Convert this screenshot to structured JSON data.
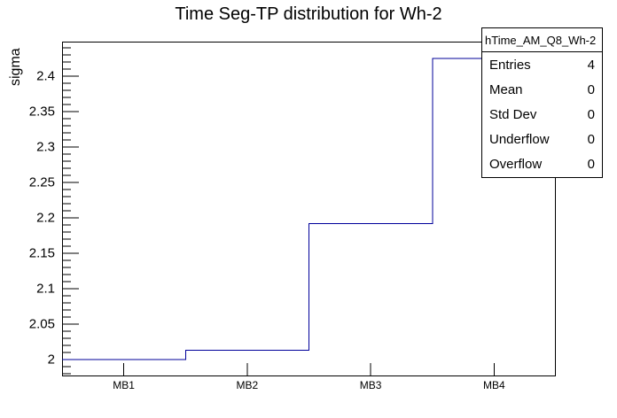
{
  "chart_data": {
    "type": "line",
    "style": "step-histogram",
    "title": "Time Seg-TP distribution for Wh-2",
    "xlabel": "",
    "ylabel": "sigma",
    "categories": [
      "MB1",
      "MB2",
      "MB3",
      "MB4"
    ],
    "values": [
      2.0,
      2.013,
      2.192,
      2.425
    ],
    "ylim": [
      1.976,
      2.449
    ],
    "y_major_ticks": [
      2.0,
      2.05,
      2.1,
      2.15,
      2.2,
      2.25,
      2.3,
      2.35,
      2.4
    ],
    "y_major_labels": [
      "2",
      "2.05",
      "2.1",
      "2.15",
      "2.2",
      "2.25",
      "2.3",
      "2.35",
      "2.4"
    ],
    "y_minor_step": 0.01,
    "grid": false,
    "legend": false,
    "line_color": "#00009a",
    "axis_color": "#000000",
    "background_color": "#ffffff"
  },
  "stats_box": {
    "header": "hTime_AM_Q8_Wh-2",
    "rows": [
      {
        "label": "Entries",
        "value": "4"
      },
      {
        "label": "Mean",
        "value": "0"
      },
      {
        "label": "Std Dev",
        "value": "0"
      },
      {
        "label": "Underflow",
        "value": "0"
      },
      {
        "label": "Overflow",
        "value": "0"
      }
    ]
  }
}
